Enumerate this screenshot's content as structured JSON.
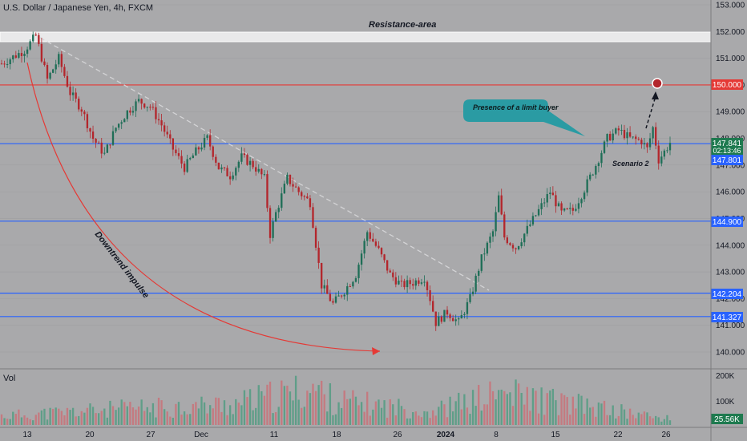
{
  "header": {
    "title": "U.S. Dollar / Japanese Yen, 4h, FXCM"
  },
  "volume_pane": {
    "label": "Vol",
    "current_value": "25.56K",
    "ticks": [
      "200K",
      "100K"
    ]
  },
  "annotations": {
    "resistance": "Resistance-area",
    "limit_buyer": "Presence of a limit buyer",
    "scenario": "Scenario 2",
    "downtrend": "Downtrend impulse"
  },
  "price_tags": {
    "current_price": "147.841",
    "countdown": "02:13:46",
    "level_147": "147.801",
    "level_150": "150.000",
    "level_144": "144.900",
    "level_142": "142.204",
    "level_141": "141.327"
  },
  "colors": {
    "background": "#a9a9ab",
    "up_candle": "#1f6e57",
    "down_candle": "#b3262c",
    "level_line": "#2962ff",
    "resistance_line": "#e53935",
    "callout": "#2a9ba3",
    "green_tag": "#1e7a4f"
  },
  "chart_data": {
    "type": "candlestick",
    "symbol": "U.S. Dollar / Japanese Yen",
    "timeframe": "4h",
    "source": "FXCM",
    "y_ticks": [
      153.0,
      152.0,
      151.0,
      150.0,
      149.0,
      148.0,
      147.0,
      146.0,
      145.0,
      144.0,
      143.0,
      142.0,
      141.0,
      140.0
    ],
    "ylim": [
      139.6,
      153.3
    ],
    "x_tick_labels": [
      "13",
      "20",
      "27",
      "Dec",
      "11",
      "18",
      "26",
      "2024",
      "8",
      "15",
      "22",
      "26"
    ],
    "horizontal_levels": [
      150.0,
      147.801,
      144.9,
      142.204,
      141.327
    ],
    "resistance_zone": [
      151.7,
      151.95
    ],
    "close_path": [
      [
        0,
        150.8
      ],
      [
        8,
        151.3
      ],
      [
        12,
        151.85
      ],
      [
        16,
        150.2
      ],
      [
        20,
        151.0
      ],
      [
        24,
        149.7
      ],
      [
        28,
        149.1
      ],
      [
        32,
        148.0
      ],
      [
        36,
        147.4
      ],
      [
        40,
        148.4
      ],
      [
        44,
        149.0
      ],
      [
        48,
        149.4
      ],
      [
        52,
        149.2
      ],
      [
        56,
        148.5
      ],
      [
        60,
        147.6
      ],
      [
        64,
        146.9
      ],
      [
        68,
        147.5
      ],
      [
        72,
        148.0
      ],
      [
        76,
        146.9
      ],
      [
        80,
        146.6
      ],
      [
        84,
        147.3
      ],
      [
        88,
        147.0
      ],
      [
        92,
        146.5
      ],
      [
        94,
        144.4
      ],
      [
        96,
        145.2
      ],
      [
        100,
        146.5
      ],
      [
        104,
        146.0
      ],
      [
        108,
        145.6
      ],
      [
        112,
        142.5
      ],
      [
        116,
        141.8
      ],
      [
        120,
        142.3
      ],
      [
        124,
        142.9
      ],
      [
        128,
        144.5
      ],
      [
        132,
        143.8
      ],
      [
        136,
        142.9
      ],
      [
        140,
        142.5
      ],
      [
        144,
        142.6
      ],
      [
        148,
        142.8
      ],
      [
        150,
        142.0
      ],
      [
        152,
        141.1
      ],
      [
        156,
        141.5
      ],
      [
        160,
        141.1
      ],
      [
        164,
        142.0
      ],
      [
        168,
        143.5
      ],
      [
        172,
        144.5
      ],
      [
        174,
        145.8
      ],
      [
        176,
        144.3
      ],
      [
        180,
        143.9
      ],
      [
        184,
        144.6
      ],
      [
        188,
        145.3
      ],
      [
        192,
        146.0
      ],
      [
        196,
        145.2
      ],
      [
        200,
        145.3
      ],
      [
        204,
        146.1
      ],
      [
        208,
        147.0
      ],
      [
        212,
        148.0
      ],
      [
        216,
        148.3
      ],
      [
        220,
        148.0
      ],
      [
        224,
        147.9
      ],
      [
        226,
        147.6
      ],
      [
        228,
        148.4
      ],
      [
        230,
        147.2
      ],
      [
        232,
        147.5
      ],
      [
        234,
        147.84
      ]
    ],
    "volume": [
      {
        "t": 0,
        "v": 40
      },
      {
        "t": 40,
        "v": 70
      },
      {
        "t": 80,
        "v": 90
      },
      {
        "t": 110,
        "v": 160
      },
      {
        "t": 116,
        "v": 110
      },
      {
        "t": 150,
        "v": 60
      },
      {
        "t": 175,
        "v": 140
      },
      {
        "t": 234,
        "v": 25.56
      }
    ]
  }
}
